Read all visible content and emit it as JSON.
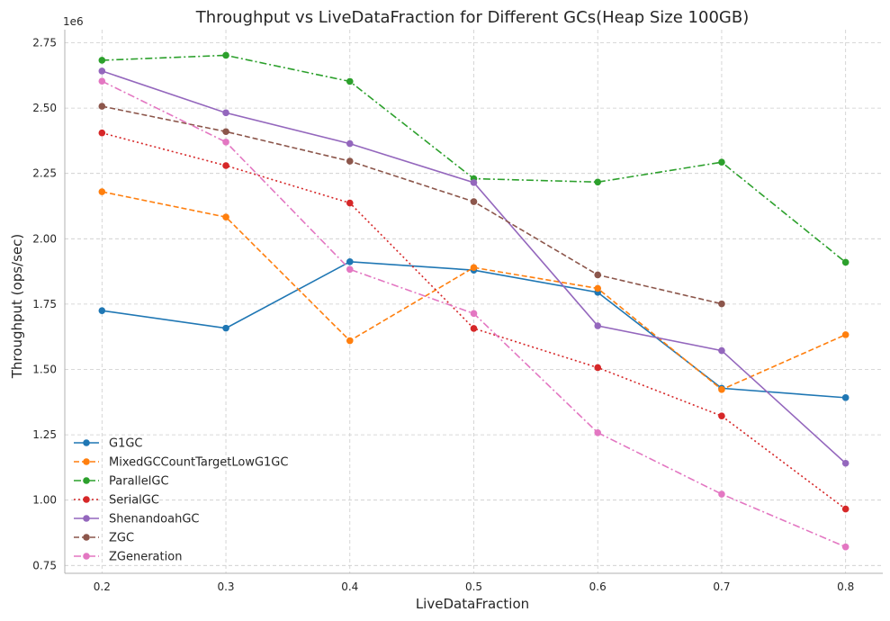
{
  "chart_data": {
    "type": "line",
    "title": "Throughput vs LiveDataFraction for Different GCs(Heap Size 100GB)",
    "xlabel": "LiveDataFraction",
    "ylabel": "Throughput (ops/sec)",
    "y_offset_label": "1e6",
    "x": [
      0.2,
      0.3,
      0.4,
      0.5,
      0.6,
      0.7,
      0.8
    ],
    "x_ticks": [
      "0.2",
      "0.3",
      "0.4",
      "0.5",
      "0.6",
      "0.7",
      "0.8"
    ],
    "y_ticks": [
      "0.75",
      "1.00",
      "1.25",
      "1.50",
      "1.75",
      "2.00",
      "2.25",
      "2.50",
      "2.75"
    ],
    "xlim": [
      0.17,
      0.83
    ],
    "ylim": [
      720000,
      2800000
    ],
    "grid": true,
    "legend_position": "lower left",
    "series": [
      {
        "name": "G1GC",
        "color": "#1f77b4",
        "dash": "solid",
        "values": [
          1725000,
          1658000,
          1912000,
          1880000,
          1795000,
          1428000,
          1392000
        ]
      },
      {
        "name": "MixedGCCountTargetLowG1GC",
        "color": "#ff7f0e",
        "dash": "dashed",
        "values": [
          2180000,
          2083000,
          1610000,
          1890000,
          1810000,
          1423000,
          1633000
        ]
      },
      {
        "name": "ParallelGC",
        "color": "#2ca02c",
        "dash": "dashdot",
        "values": [
          2683000,
          2702000,
          2602000,
          2230000,
          2217000,
          2293000,
          1910000
        ]
      },
      {
        "name": "SerialGC",
        "color": "#d62728",
        "dash": "dotted",
        "values": [
          2405000,
          2280000,
          2137000,
          1657000,
          1507000,
          1322000,
          966000
        ]
      },
      {
        "name": "ShenandoahGC",
        "color": "#9467bd",
        "dash": "solid",
        "values": [
          2642000,
          2482000,
          2364000,
          2215000,
          1667000,
          1572000,
          1141000
        ]
      },
      {
        "name": "ZGC",
        "color": "#8c564b",
        "dash": "dashed",
        "values": [
          2507000,
          2410000,
          2297000,
          2142000,
          1862000,
          1751000,
          null
        ]
      },
      {
        "name": "ZGeneration",
        "color": "#e377c2",
        "dash": "dashdot",
        "values": [
          2603000,
          2370000,
          1883000,
          1714000,
          1258000,
          1023000,
          821000
        ]
      }
    ]
  }
}
